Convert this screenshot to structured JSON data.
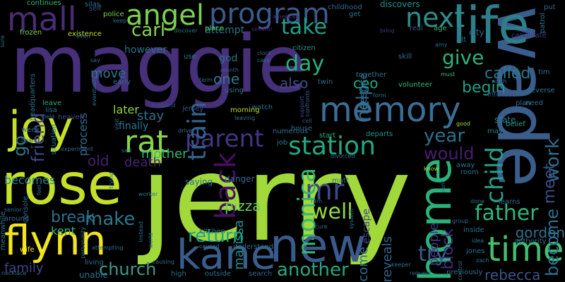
{
  "cloud": {
    "background": "#000000",
    "words": [
      {
        "text": "jerry",
        "color": "#a2d93a"
      },
      {
        "text": "maggie",
        "color": "#46307a"
      },
      {
        "text": "rose",
        "color": "#c6e02a"
      },
      {
        "text": "wade",
        "color": "#3a5e8c"
      },
      {
        "text": "memory",
        "color": "#3b6e95"
      },
      {
        "text": "life",
        "color": "#2e7e8c"
      },
      {
        "text": "new",
        "color": "#3a5a8e"
      },
      {
        "text": "joy",
        "color": "#c6e02a"
      },
      {
        "text": "time",
        "color": "#43bf71"
      },
      {
        "text": "flynn",
        "color": "#f0e51f"
      },
      {
        "text": "home",
        "color": "#2ab27a"
      },
      {
        "text": "kane",
        "color": "#3a5e8c"
      },
      {
        "text": "angel",
        "color": "#7ad151"
      },
      {
        "text": "mall",
        "color": "#4a2d73"
      },
      {
        "text": "program",
        "color": "#3b5b8c"
      },
      {
        "text": "next",
        "color": "#2c8e8b"
      },
      {
        "text": "rat",
        "color": "#88d548"
      },
      {
        "text": "parent",
        "color": "#433580"
      },
      {
        "text": "station",
        "color": "#25a884"
      },
      {
        "text": "mr",
        "color": "#3d4a89"
      },
      {
        "text": "monica",
        "color": "#36b677"
      },
      {
        "text": "child",
        "color": "#2a9e8a"
      },
      {
        "text": "father",
        "color": "#2fb47c"
      },
      {
        "text": "church",
        "color": "#3e9a8b"
      },
      {
        "text": "another",
        "color": "#26a783"
      },
      {
        "text": "return",
        "color": "#20a486"
      },
      {
        "text": "well",
        "color": "#95d840"
      },
      {
        "text": "make",
        "color": "#2a788e"
      },
      {
        "text": "back",
        "color": "#471063"
      },
      {
        "text": "try",
        "color": "#3a5d8c"
      },
      {
        "text": "year",
        "color": "#2c718e"
      },
      {
        "text": "give",
        "color": "#2db27d"
      },
      {
        "text": "work",
        "color": "#2f6c8e"
      },
      {
        "text": "take",
        "color": "#1fa187"
      },
      {
        "text": "day",
        "color": "#2bb07f"
      },
      {
        "text": "train",
        "color": "#33628d"
      },
      {
        "text": "help",
        "color": "#31688e"
      },
      {
        "text": "friend",
        "color": "#3f4788"
      },
      {
        "text": "go",
        "color": "#2a788e"
      },
      {
        "text": "would",
        "color": "#481d6f"
      },
      {
        "text": "become",
        "color": "#2e6e8e"
      },
      {
        "text": "meet",
        "color": "#3d4e8a"
      },
      {
        "text": "break",
        "color": "#2c738e"
      },
      {
        "text": "carl",
        "color": "#84d44b"
      },
      {
        "text": "pizza",
        "color": "#6ccd5a"
      },
      {
        "text": "gordon",
        "color": "#2c738e"
      },
      {
        "text": "rebecca",
        "color": "#3b528b"
      },
      {
        "text": "family",
        "color": "#414487"
      },
      {
        "text": "kent",
        "color": "#37b878"
      },
      {
        "text": "begin",
        "color": "#1f9e89"
      },
      {
        "text": "called",
        "color": "#2a788e"
      },
      {
        "text": "one",
        "color": "#2a788e"
      },
      {
        "text": "old",
        "color": "#481f70"
      },
      {
        "text": "death",
        "color": "#482475"
      },
      {
        "text": "come",
        "color": "#2d708e"
      },
      {
        "text": "reveals",
        "color": "#32648e"
      },
      {
        "text": "people",
        "color": "#46337f"
      },
      {
        "text": "also",
        "color": "#3e4c8a"
      },
      {
        "text": "ceo",
        "color": "#22a884"
      },
      {
        "text": "move",
        "color": "#2a788e"
      },
      {
        "text": "process",
        "color": "#2f6c8e"
      },
      {
        "text": "becomes",
        "color": "#27808e"
      },
      {
        "text": "marissa",
        "color": "#21918c"
      },
      {
        "text": "mother",
        "color": "#35b779"
      },
      {
        "text": "stay",
        "color": "#2e6e8e"
      },
      {
        "text": "later",
        "color": "#8fd744"
      },
      {
        "text": "finally",
        "color": "#2b758e"
      },
      {
        "text": "god",
        "color": "#2c728e"
      },
      {
        "text": "however",
        "color": "#2e6d8e"
      },
      {
        "text": "attempt",
        "color": "#2c738e"
      },
      {
        "text": "escape",
        "color": "#3e4989"
      },
      {
        "text": "despite",
        "color": "#2c718e"
      },
      {
        "text": "state",
        "color": "#2a788e"
      },
      {
        "text": "block",
        "color": "#482979"
      },
      {
        "text": "saying",
        "color": "#2e6f8e"
      },
      {
        "text": "citizen",
        "color": "#21918c"
      },
      {
        "text": "together",
        "color": "#2b758e"
      },
      {
        "text": "existence",
        "color": "#c8e020"
      },
      {
        "text": "frozen",
        "color": "#7fd34e"
      },
      {
        "text": "discovers",
        "color": "#21918c"
      },
      {
        "text": "police",
        "color": "#7ad151"
      },
      {
        "text": "continues",
        "color": "#35b779"
      },
      {
        "text": "silas",
        "color": "#2c728e"
      },
      {
        "text": "self",
        "color": "#3e4c8a"
      },
      {
        "text": "childhood",
        "color": "#31688e"
      },
      {
        "text": "american",
        "color": "#46307e"
      },
      {
        "text": "put",
        "color": "#31688e"
      },
      {
        "text": "patrol",
        "color": "#2c728e"
      },
      {
        "text": "candidate",
        "color": "#44397f"
      },
      {
        "text": "city",
        "color": "#31688e"
      },
      {
        "text": "fit",
        "color": "#2e6e8e"
      },
      {
        "text": "bring",
        "color": "#46327e"
      },
      {
        "text": "real",
        "color": "#38588c"
      },
      {
        "text": "age",
        "color": "#35b779"
      },
      {
        "text": "several",
        "color": "#482576"
      },
      {
        "text": "get",
        "color": "#2c728e"
      },
      {
        "text": "keep",
        "color": "#2e6e8e"
      },
      {
        "text": "discover",
        "color": "#2a788e"
      },
      {
        "text": "place",
        "color": "#5ec962"
      },
      {
        "text": "even",
        "color": "#2e6d8e"
      },
      {
        "text": "headquarters",
        "color": "#2c728e"
      },
      {
        "text": "leave",
        "color": "#27ad81"
      },
      {
        "text": "lisa",
        "color": "#2c728e"
      },
      {
        "text": "field",
        "color": "#31688e"
      },
      {
        "text": "situation",
        "color": "#2a788e"
      },
      {
        "text": "week",
        "color": "#2e6e8e"
      },
      {
        "text": "board",
        "color": "#38598c"
      },
      {
        "text": "heaven",
        "color": "#3e4a89"
      },
      {
        "text": "eventually",
        "color": "#2a788e"
      },
      {
        "text": "early",
        "color": "#2e6e8e"
      },
      {
        "text": "husband",
        "color": "#3b528b"
      },
      {
        "text": "jersey",
        "color": "#3b528b"
      },
      {
        "text": "leaving",
        "color": "#2c718e"
      },
      {
        "text": "morning",
        "color": "#c2df23"
      },
      {
        "text": "watch",
        "color": "#2e6e8e"
      },
      {
        "text": "support",
        "color": "#3f4889"
      },
      {
        "text": "confronts",
        "color": "#31688e"
      },
      {
        "text": "twin",
        "color": "#2e6e8e"
      },
      {
        "text": "using",
        "color": "#2a788e"
      },
      {
        "text": "month",
        "color": "#33638d"
      },
      {
        "text": "term",
        "color": "#2c718e"
      },
      {
        "text": "case",
        "color": "#2e6e8e"
      },
      {
        "text": "clock",
        "color": "#2e6e8e"
      },
      {
        "text": "use",
        "color": "#2a788e"
      },
      {
        "text": "skill",
        "color": "#2e6e8e"
      },
      {
        "text": "volunteer",
        "color": "#35b779"
      },
      {
        "text": "north",
        "color": "#2c728e"
      },
      {
        "text": "form",
        "color": "#2a788e"
      },
      {
        "text": "infected",
        "color": "#3b528b"
      },
      {
        "text": "reverse",
        "color": "#2c728e"
      },
      {
        "text": "plan",
        "color": "#2e6e8e"
      },
      {
        "text": "need",
        "color": "#2c728e"
      },
      {
        "text": "belief",
        "color": "#1fa187"
      },
      {
        "text": "good",
        "color": "#a5db36"
      },
      {
        "text": "may",
        "color": "#27808e"
      },
      {
        "text": "must",
        "color": "#44bf70"
      },
      {
        "text": "amy",
        "color": "#2c728e"
      },
      {
        "text": "house",
        "color": "#2e6e8e"
      },
      {
        "text": "cell",
        "color": "#3b528b"
      },
      {
        "text": "numerous",
        "color": "#2e6e8e"
      },
      {
        "text": "start",
        "color": "#27ad81"
      },
      {
        "text": "departs",
        "color": "#21918c"
      },
      {
        "text": "job",
        "color": "#2a788e"
      },
      {
        "text": "divorced",
        "color": "#2c728e"
      },
      {
        "text": "driver",
        "color": "#2e6e8e"
      },
      {
        "text": "visit",
        "color": "#2c728e"
      },
      {
        "text": "sad",
        "color": "#2a788e"
      },
      {
        "text": "experiment",
        "color": "#31688e"
      },
      {
        "text": "worker",
        "color": "#2a788e"
      },
      {
        "text": "trying",
        "color": "#2a788e"
      },
      {
        "text": "danger",
        "color": "#31688e"
      },
      {
        "text": "matt",
        "color": "#2e6e8e"
      },
      {
        "text": "ram",
        "color": "#2c728e"
      },
      {
        "text": "kitchen",
        "color": "#2a788e"
      },
      {
        "text": "understand",
        "color": "#2e6e8e"
      },
      {
        "text": "caused",
        "color": "#2a788e"
      },
      {
        "text": "causing",
        "color": "#2e6e8e"
      },
      {
        "text": "outside",
        "color": "#2c728e"
      },
      {
        "text": "high",
        "color": "#2e6e8e"
      },
      {
        "text": "search",
        "color": "#2e6e8e"
      },
      {
        "text": "living",
        "color": "#2e6e8e"
      },
      {
        "text": "unable",
        "color": "#2e6e8e"
      },
      {
        "text": "wife",
        "color": "#fde725"
      },
      {
        "text": "necklace",
        "color": "#2e6e8e"
      },
      {
        "text": "around",
        "color": "#2e6e8e"
      },
      {
        "text": "meanwhile",
        "color": "#2c728e"
      },
      {
        "text": "senior",
        "color": "#2e6e8e"
      },
      {
        "text": "console",
        "color": "#2e6e8e"
      },
      {
        "text": "personality",
        "color": "#2c728e"
      },
      {
        "text": "feel",
        "color": "#2e6e8e"
      },
      {
        "text": "world",
        "color": "#2e6e8e"
      },
      {
        "text": "instead",
        "color": "#2e6e8e"
      },
      {
        "text": "attempting",
        "color": "#2e6e8e"
      },
      {
        "text": "learns",
        "color": "#2e6e8e"
      },
      {
        "text": "done",
        "color": "#2c728e"
      },
      {
        "text": "group",
        "color": "#2e6e8e"
      },
      {
        "text": "inside",
        "color": "#2e6e8e"
      },
      {
        "text": "idea",
        "color": "#2c728e"
      },
      {
        "text": "jones",
        "color": "#2e6e8e"
      },
      {
        "text": "zach",
        "color": "#2c728e"
      },
      {
        "text": "control",
        "color": "#2e6e8e"
      },
      {
        "text": "authority",
        "color": "#2e6e8e"
      },
      {
        "text": "previously",
        "color": "#2e6e8e"
      },
      {
        "text": "request",
        "color": "#2e6e8e"
      },
      {
        "text": "keeper",
        "color": "#2e6e8e"
      },
      {
        "text": "room",
        "color": "#2e6e8e"
      },
      {
        "text": "away",
        "color": "#2e6e8e"
      },
      {
        "text": "know",
        "color": "#c2df23"
      },
      {
        "text": "sent",
        "color": "#2e6e8e"
      },
      {
        "text": "system",
        "color": "#2e6e8e"
      },
      {
        "text": "cure",
        "color": "#2e6e8e"
      },
      {
        "text": "tim",
        "color": "#2e6e8e"
      },
      {
        "text": "say",
        "color": "#2e6e8e"
      },
      {
        "text": "sure",
        "color": "#2e6e8e"
      }
    ]
  }
}
